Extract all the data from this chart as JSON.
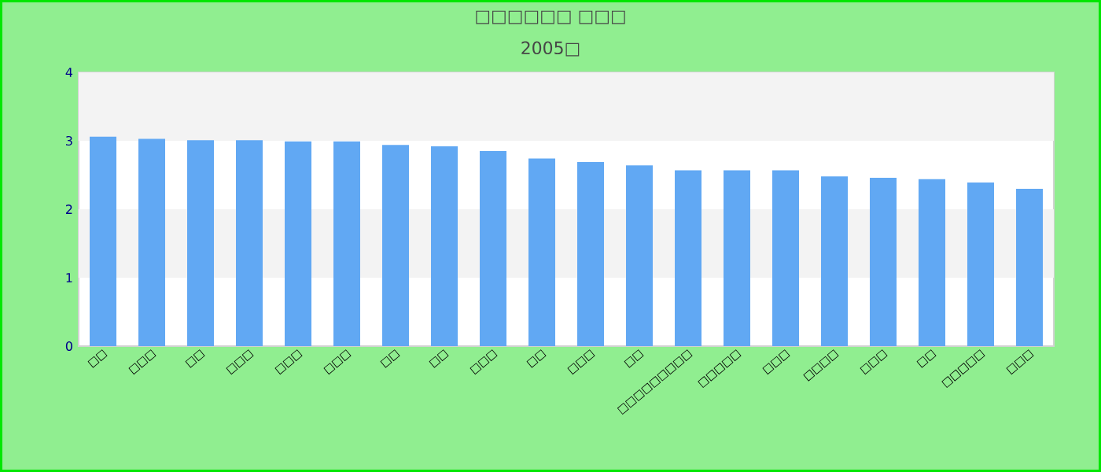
{
  "chart_data": {
    "type": "bar",
    "title": "□□□□□□ □□□",
    "subtitle": "2005□",
    "categories": [
      "□□",
      "□□□",
      "□□",
      "□□□",
      "□□□",
      "□□□",
      "□□",
      "□□",
      "□□□",
      "□□",
      "□□□",
      "□□",
      "□□□□□□□□□",
      "□□□□□",
      "□□□",
      "□□□□",
      "□□□",
      "□□",
      "□□□□□",
      "□□□"
    ],
    "values": [
      3.06,
      3.03,
      3.01,
      3.01,
      2.99,
      2.99,
      2.94,
      2.92,
      2.85,
      2.74,
      2.69,
      2.64,
      2.57,
      2.57,
      2.57,
      2.48,
      2.46,
      2.44,
      2.39,
      2.3
    ],
    "color": "#61a8f3",
    "ylim": [
      0,
      4
    ],
    "yticks": [
      0,
      1,
      2,
      3,
      4
    ]
  }
}
